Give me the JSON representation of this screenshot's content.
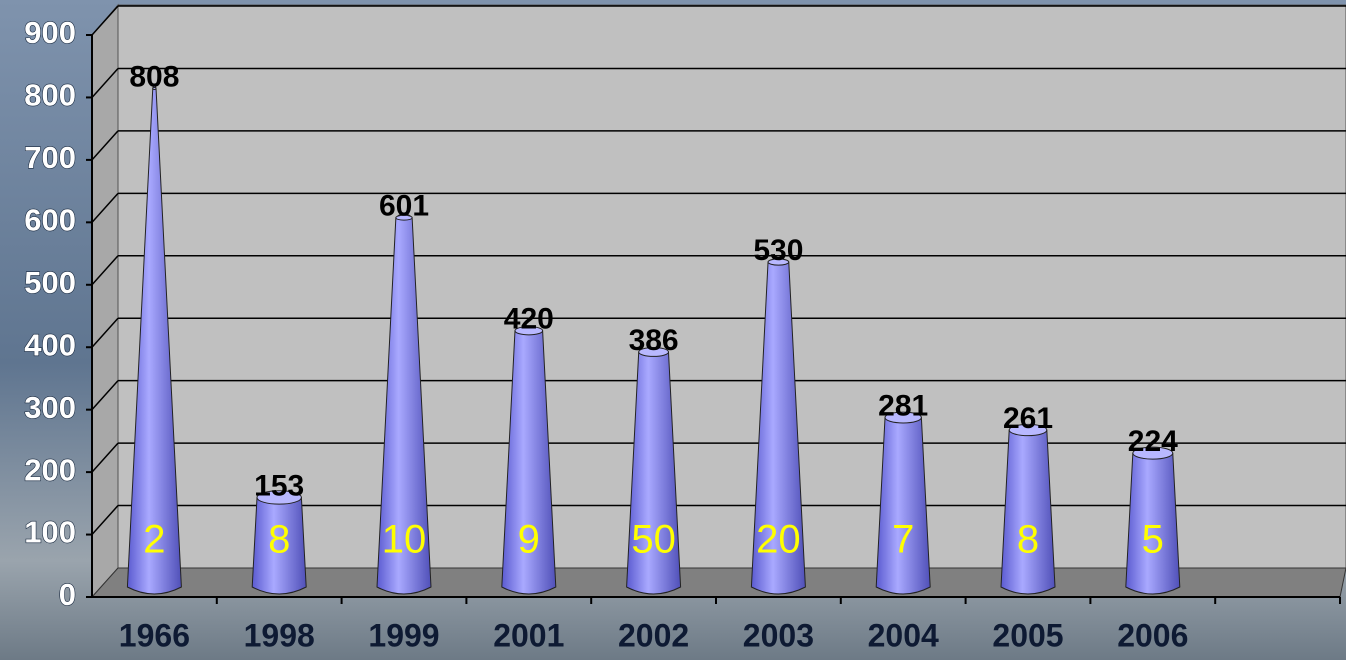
{
  "chart_data": {
    "type": "bar",
    "categories": [
      "1966",
      "1998",
      "1999",
      "2001",
      "2002",
      "2003",
      "2004",
      "2005",
      "2006"
    ],
    "values": [
      808,
      153,
      601,
      420,
      386,
      530,
      281,
      261,
      224
    ],
    "bar_labels": [
      2,
      8,
      10,
      9,
      50,
      20,
      7,
      8,
      5
    ],
    "color": "#8f8ff5",
    "ylim": [
      0,
      900
    ],
    "yticks": [
      0,
      100,
      200,
      300,
      400,
      500,
      600,
      700,
      800,
      900
    ],
    "grid": true
  }
}
